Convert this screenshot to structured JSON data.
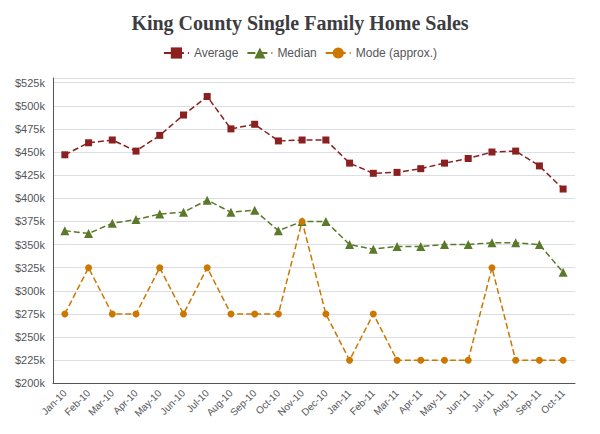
{
  "chart_data": {
    "type": "line",
    "title": "King County Single Family Home Sales",
    "categories": [
      "Jan-10",
      "Feb-10",
      "Mar-10",
      "Apr-10",
      "May-10",
      "Jun-10",
      "Jul-10",
      "Aug-10",
      "Sep-10",
      "Oct-10",
      "Nov-10",
      "Dec-10",
      "Jan-11",
      "Feb-11",
      "Mar-11",
      "Apr-11",
      "May-11",
      "Jun-11",
      "Jul-11",
      "Aug-11",
      "Sep-11",
      "Oct-11"
    ],
    "series": [
      {
        "name": "Average",
        "color": "#8B2020",
        "marker": "square",
        "line_style": "dashed",
        "values": [
          447000,
          460000,
          463000,
          451000,
          468000,
          490000,
          510000,
          475000,
          480000,
          462000,
          463000,
          463000,
          438000,
          427000,
          428000,
          432000,
          438000,
          443000,
          450000,
          451000,
          435000,
          410000
        ]
      },
      {
        "name": "Median",
        "color": "#5A7A2A",
        "marker": "triangle",
        "line_style": "dashed",
        "values": [
          365000,
          362000,
          373000,
          377000,
          383000,
          385000,
          398000,
          385000,
          387000,
          365000,
          375000,
          375000,
          350000,
          345000,
          348000,
          348000,
          350000,
          350000,
          352000,
          352000,
          350000,
          320000
        ]
      },
      {
        "name": "Mode (approx.)",
        "color": "#CC7700",
        "marker": "circle",
        "line_style": "dashed",
        "values": [
          275000,
          325000,
          275000,
          275000,
          325000,
          275000,
          325000,
          275000,
          275000,
          275000,
          375000,
          275000,
          225000,
          275000,
          225000,
          225000,
          225000,
          225000,
          325000,
          225000,
          225000,
          225000
        ]
      }
    ],
    "ylim": [
      200000,
      530000
    ],
    "yticks": [
      {
        "value": 200000,
        "label": "$200k"
      },
      {
        "value": 225000,
        "label": "$225k"
      },
      {
        "value": 250000,
        "label": "$250k"
      },
      {
        "value": 275000,
        "label": "$275k"
      },
      {
        "value": 300000,
        "label": "$300k"
      },
      {
        "value": 325000,
        "label": "$325k"
      },
      {
        "value": 350000,
        "label": "$350k"
      },
      {
        "value": 375000,
        "label": "$375k"
      },
      {
        "value": 400000,
        "label": "$400k"
      },
      {
        "value": 425000,
        "label": "$425k"
      },
      {
        "value": 450000,
        "label": "$450k"
      },
      {
        "value": 475000,
        "label": "$475k"
      },
      {
        "value": 500000,
        "label": "$500k"
      },
      {
        "value": 525000,
        "label": "$525k"
      }
    ],
    "grid": true,
    "legend": "top"
  }
}
